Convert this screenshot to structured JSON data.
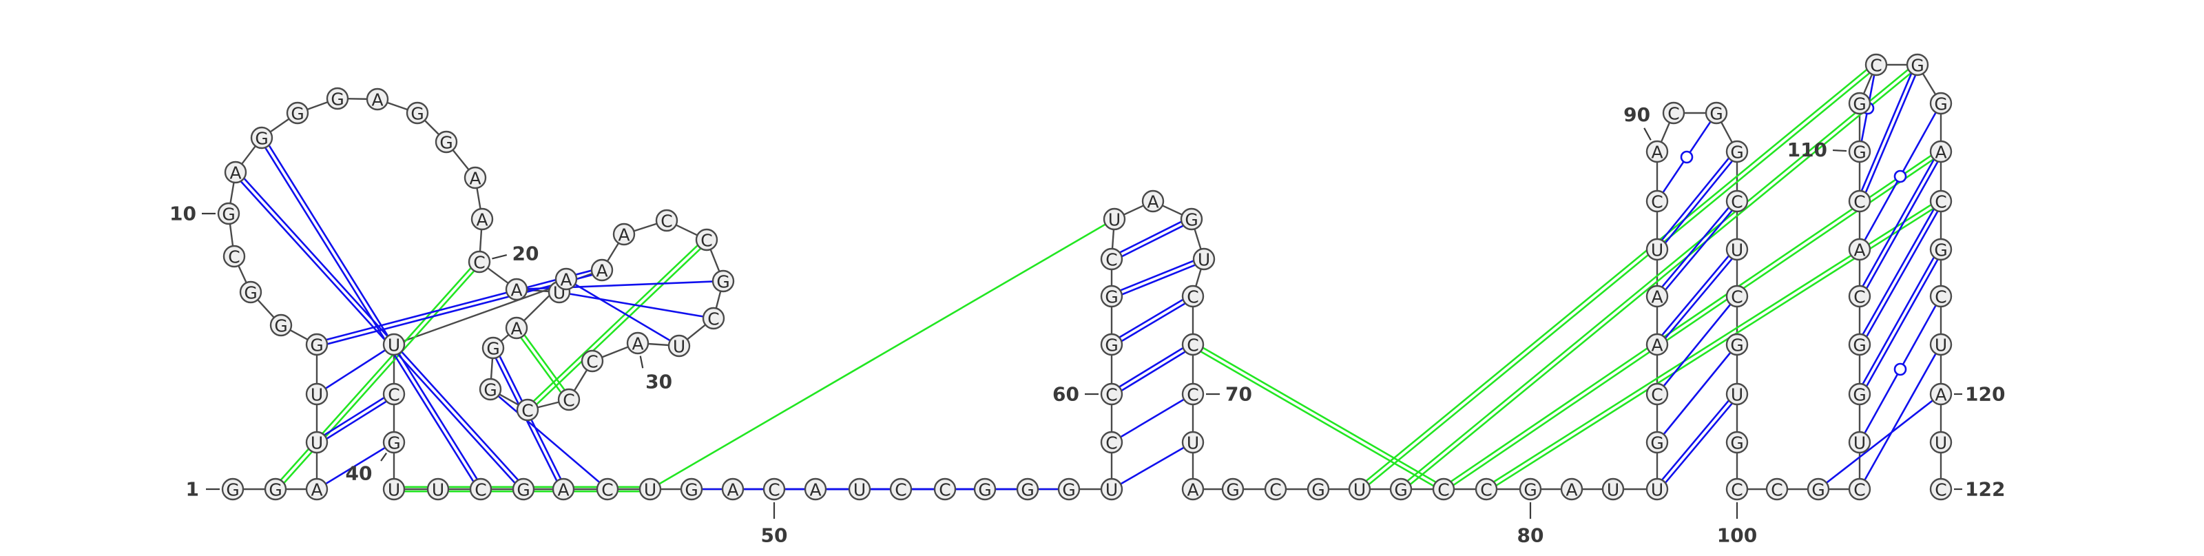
{
  "sequence": "GGAUUGGGCGAGGGAGGAACAUAAGGCCCAUCGCCAAUCGUUCGACUGACAUCCGGGUCCGGCUAGUCCCUAGCGUGCCGAUUGCAAUCACGGCUCGUGCCGCUGGCACGGCGGACGCUAUC",
  "colors": {
    "backbone": "#4a4a4a",
    "pair": "#1010ee",
    "tertiary": "#22e622",
    "nucleotide_fill": "#efefef"
  },
  "position_labels": [
    {
      "index": 1,
      "text": "1"
    },
    {
      "index": 10,
      "text": "10"
    },
    {
      "index": 20,
      "text": "20"
    },
    {
      "index": 30,
      "text": "30"
    },
    {
      "index": 40,
      "text": "40"
    },
    {
      "index": 50,
      "text": "50"
    },
    {
      "index": 60,
      "text": "60"
    },
    {
      "index": 70,
      "text": "70"
    },
    {
      "index": 80,
      "text": "80"
    },
    {
      "index": 90,
      "text": "90"
    },
    {
      "index": 100,
      "text": "100"
    },
    {
      "index": 110,
      "text": "110"
    },
    {
      "index": 120,
      "text": "120"
    },
    {
      "index": 122,
      "text": "122"
    }
  ],
  "base_pairs": [
    {
      "i": 3,
      "j": 40,
      "type": "single"
    },
    {
      "i": 4,
      "j": 39,
      "type": "double"
    },
    {
      "i": 5,
      "j": 38,
      "type": "single"
    },
    {
      "i": 6,
      "j": 37,
      "type": "double"
    },
    {
      "i": 21,
      "j": 33,
      "type": "single"
    },
    {
      "i": 22,
      "j": 32,
      "type": "single"
    },
    {
      "i": 23,
      "j": 31,
      "type": "single"
    },
    {
      "i": 12,
      "j": 43,
      "type": "double"
    },
    {
      "i": 11,
      "j": 44,
      "type": "double"
    },
    {
      "i": 25,
      "j": 45,
      "type": "double"
    },
    {
      "i": 26,
      "j": 46,
      "type": "single"
    },
    {
      "i": 57,
      "j": 48,
      "type": "single"
    },
    {
      "i": 56,
      "j": 49,
      "type": "single"
    },
    {
      "i": 55,
      "j": 50,
      "type": "single"
    },
    {
      "i": 54,
      "j": 51,
      "type": "single"
    },
    {
      "i": 58,
      "j": 71,
      "type": "single"
    },
    {
      "i": 59,
      "j": 70,
      "type": "single"
    },
    {
      "i": 60,
      "j": 69,
      "type": "double"
    },
    {
      "i": 61,
      "j": 68,
      "type": "double"
    },
    {
      "i": 62,
      "j": 67,
      "type": "double"
    },
    {
      "i": 63,
      "j": 66,
      "type": "double"
    },
    {
      "i": 83,
      "j": 98,
      "type": "double"
    },
    {
      "i": 84,
      "j": 97,
      "type": "single"
    },
    {
      "i": 85,
      "j": 96,
      "type": "single"
    },
    {
      "i": 86,
      "j": 95,
      "type": "double"
    },
    {
      "i": 87,
      "j": 94,
      "type": "double"
    },
    {
      "i": 88,
      "j": 93,
      "type": "double"
    },
    {
      "i": 89,
      "j": 92,
      "type": "wobble"
    },
    {
      "i": 102,
      "j": 120,
      "type": "single"
    },
    {
      "i": 103,
      "j": 119,
      "type": "single"
    },
    {
      "i": 104,
      "j": 118,
      "type": "wobble"
    },
    {
      "i": 105,
      "j": 117,
      "type": "double"
    },
    {
      "i": 106,
      "j": 116,
      "type": "double"
    },
    {
      "i": 107,
      "j": 115,
      "type": "double"
    },
    {
      "i": 108,
      "j": 114,
      "type": "wobble"
    },
    {
      "i": 109,
      "j": 113,
      "type": "double"
    },
    {
      "i": 110,
      "j": 112,
      "type": "wobble"
    }
  ],
  "tertiary_pairs": [
    {
      "i": 2,
      "j": 20,
      "type": "double"
    },
    {
      "i": 27,
      "j": 34,
      "type": "double"
    },
    {
      "i": 28,
      "j": 24,
      "type": "double"
    },
    {
      "i": 47,
      "j": 41,
      "type": "double"
    },
    {
      "i": 47,
      "j": 64,
      "type": "single"
    },
    {
      "i": 69,
      "j": 78,
      "type": "double"
    },
    {
      "i": 76,
      "j": 112,
      "type": "double"
    },
    {
      "i": 77,
      "j": 113,
      "type": "double"
    },
    {
      "i": 78,
      "j": 115,
      "type": "double"
    },
    {
      "i": 79,
      "j": 116,
      "type": "double"
    }
  ]
}
